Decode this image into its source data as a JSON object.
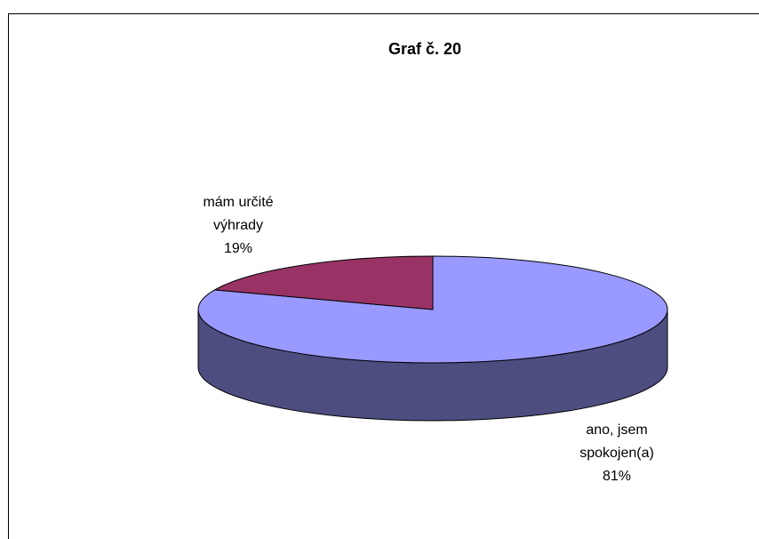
{
  "chart_data": {
    "type": "pie",
    "title": "Graf č. 20",
    "categories": [
      "ano, jsem spokojen(a)",
      "mám určité výhrady"
    ],
    "values": [
      81,
      19
    ],
    "value_labels": [
      "81%",
      "19%"
    ],
    "colors": [
      "#9999ff",
      "#993366"
    ],
    "side_colors": [
      "#4d4d80",
      "#4d1a33"
    ]
  }
}
